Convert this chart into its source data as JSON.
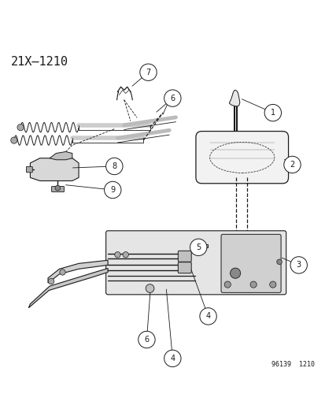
{
  "title_label": "21X–1210",
  "footer_label": "96139  1210",
  "bg_color": "#ffffff",
  "line_color": "#1a1a1a",
  "title_fontsize": 11,
  "footer_fontsize": 6,
  "callout_fontsize": 7,
  "fig_width": 4.14,
  "fig_height": 5.33,
  "dpi": 100
}
